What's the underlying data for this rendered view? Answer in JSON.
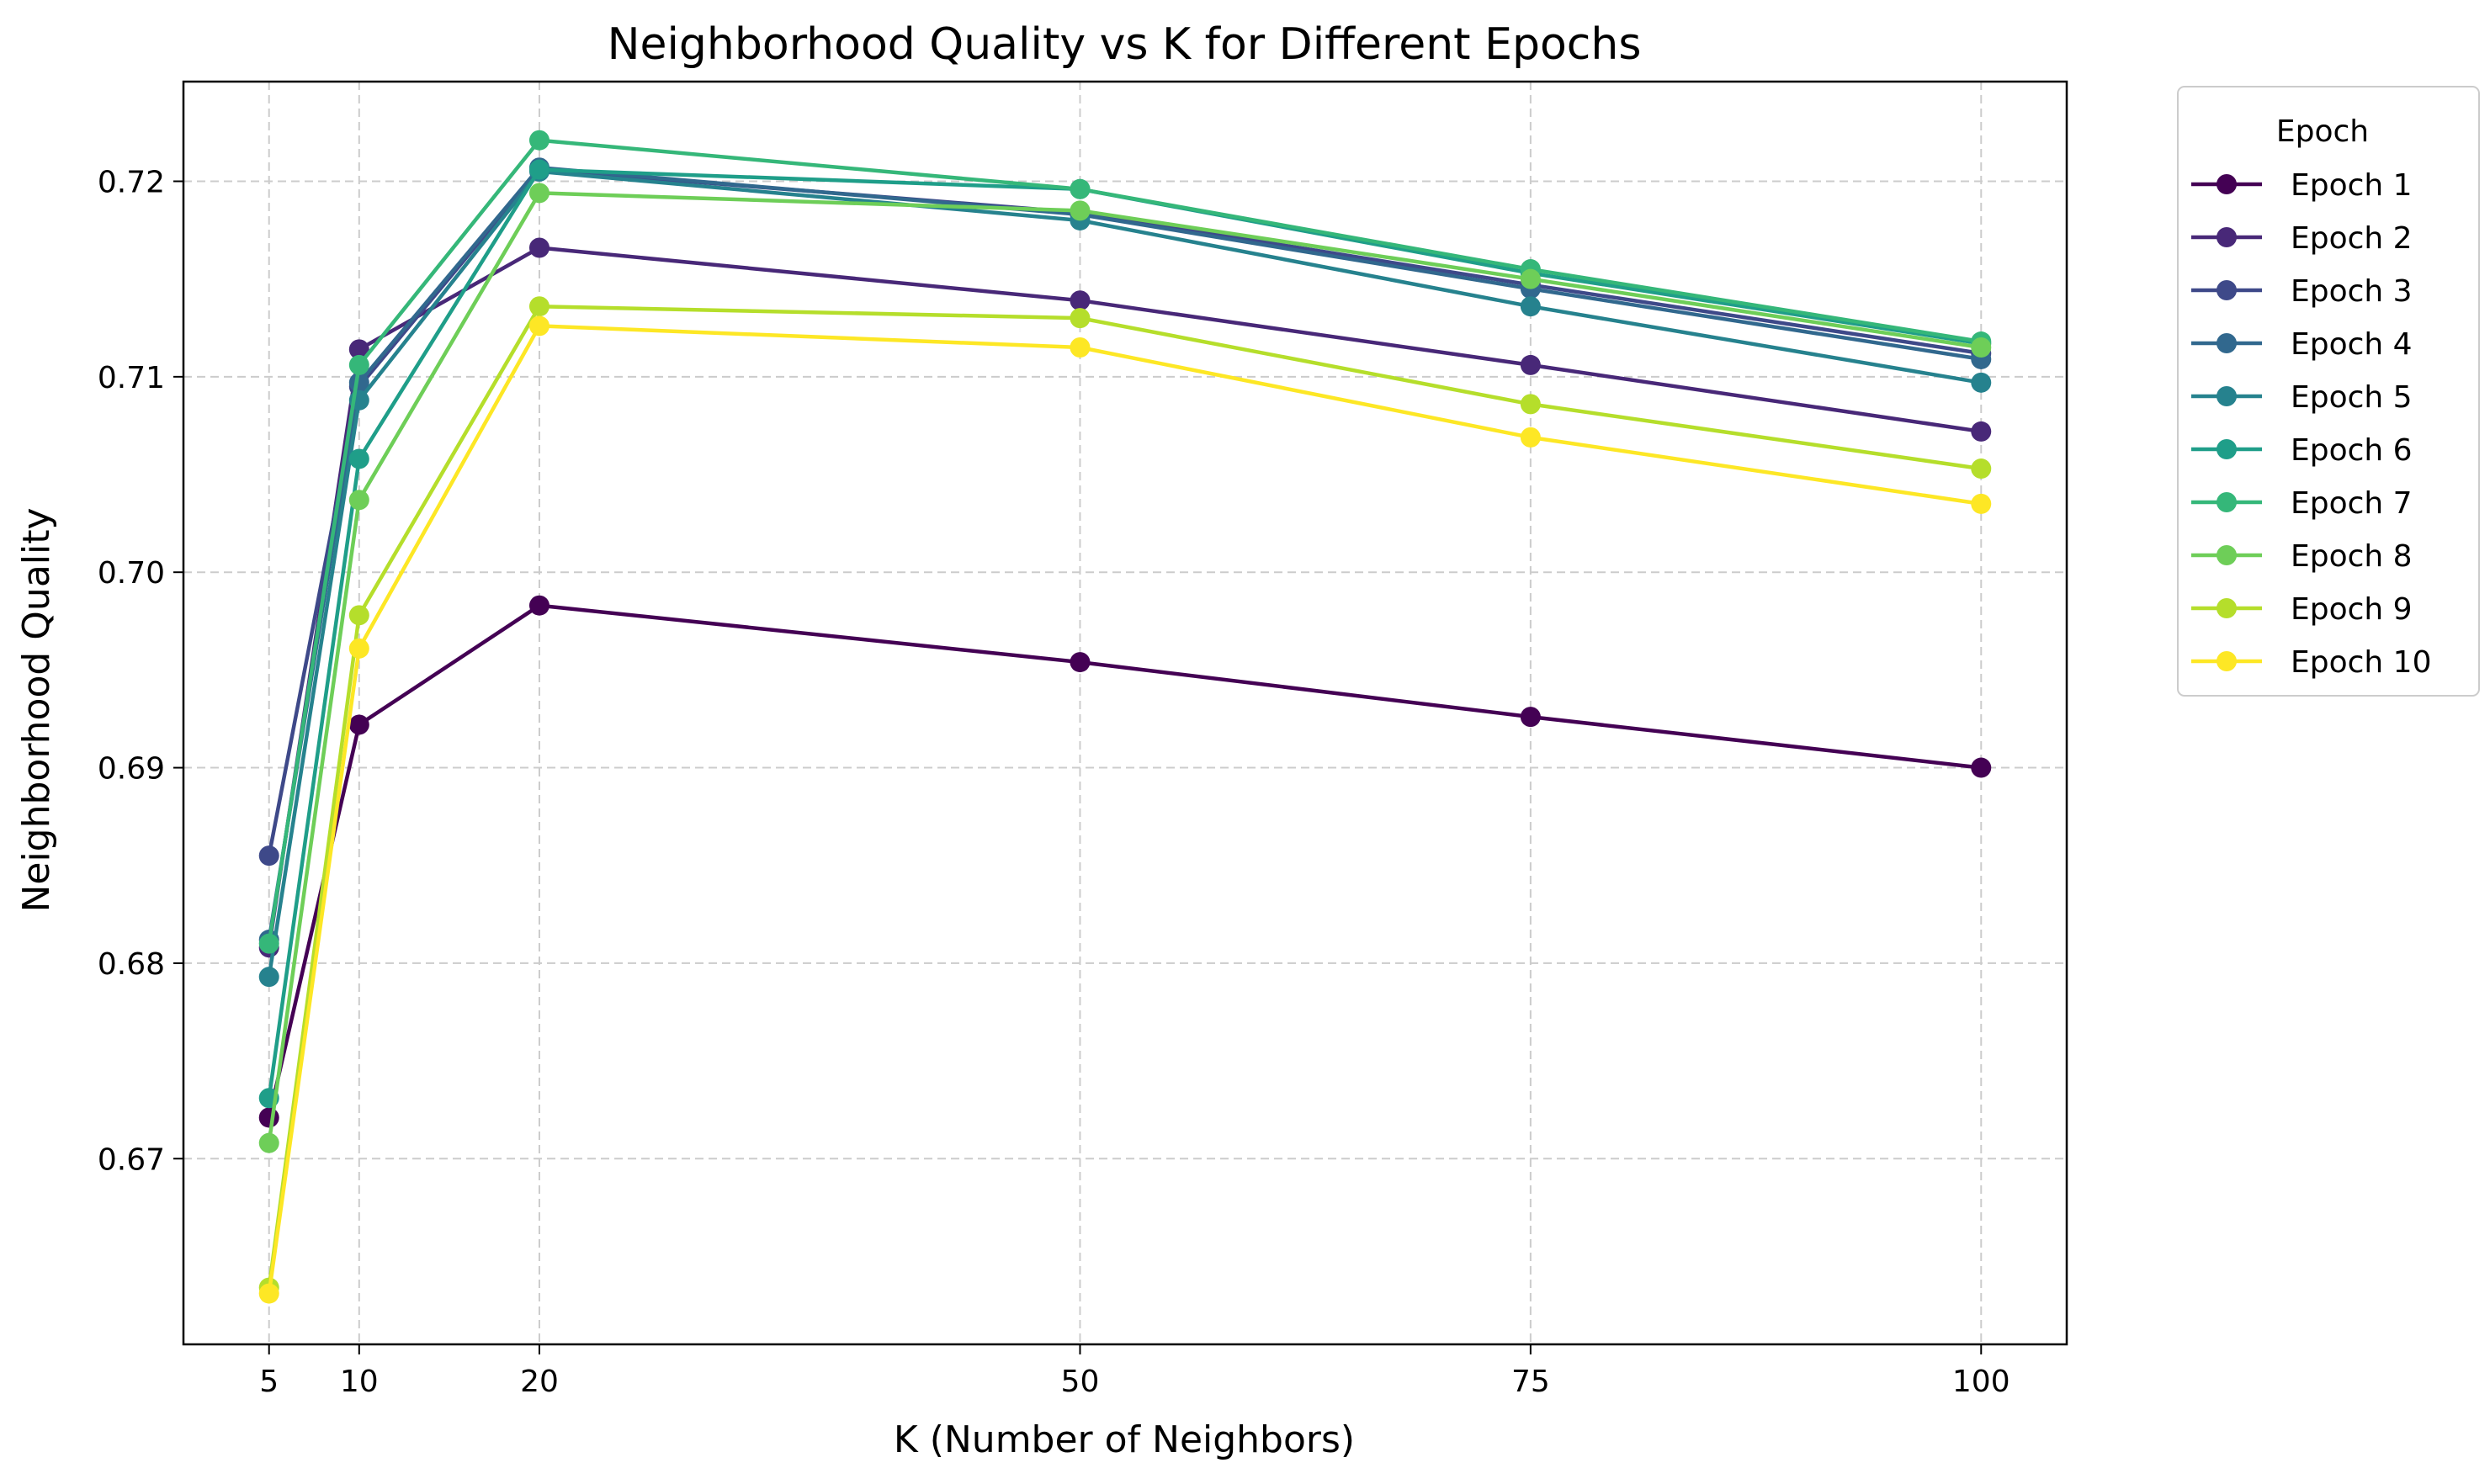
{
  "chart_data": {
    "type": "line",
    "title": "Neighborhood Quality vs K for Different Epochs",
    "xlabel": "K (Number of Neighbors)",
    "ylabel": "Neighborhood Quality",
    "x": [
      5,
      10,
      20,
      50,
      75,
      100
    ],
    "x_ticks": [
      5,
      10,
      20,
      50,
      75,
      100
    ],
    "y_ticks": [
      0.67,
      0.68,
      0.69,
      0.7,
      0.71,
      0.72
    ],
    "y_tick_labels": [
      "0.67",
      "0.68",
      "0.69",
      "0.70",
      "0.71",
      "0.72"
    ],
    "xlim": [
      0.25,
      104.75
    ],
    "ylim": [
      0.6605,
      0.7251
    ],
    "grid": true,
    "grid_style": "dashed",
    "marker": "circle",
    "legend": {
      "title": "Epoch",
      "placement": "outside-right-top"
    },
    "series": [
      {
        "name": "Epoch 1",
        "color": "#440154",
        "values": [
          0.6721,
          0.6922,
          0.6983,
          0.6954,
          0.6926,
          0.69
        ]
      },
      {
        "name": "Epoch 2",
        "color": "#482878",
        "values": [
          0.6808,
          0.7114,
          0.7166,
          0.7139,
          0.7106,
          0.7072
        ]
      },
      {
        "name": "Epoch 3",
        "color": "#3e4989",
        "values": [
          0.6855,
          0.7095,
          0.7206,
          0.7184,
          0.7147,
          0.7112
        ]
      },
      {
        "name": "Epoch 4",
        "color": "#31688e",
        "values": [
          0.6812,
          0.7097,
          0.7207,
          0.7183,
          0.7145,
          0.7109
        ]
      },
      {
        "name": "Epoch 5",
        "color": "#26828e",
        "values": [
          0.6793,
          0.7088,
          0.7205,
          0.718,
          0.7136,
          0.7097
        ]
      },
      {
        "name": "Epoch 6",
        "color": "#1f9e89",
        "values": [
          0.6731,
          0.7058,
          0.7206,
          0.7196,
          0.7153,
          0.7117
        ]
      },
      {
        "name": "Epoch 7",
        "color": "#35b779",
        "values": [
          0.681,
          0.7106,
          0.7221,
          0.7196,
          0.7155,
          0.7118
        ]
      },
      {
        "name": "Epoch 8",
        "color": "#6ece58",
        "values": [
          0.6708,
          0.7037,
          0.7194,
          0.7185,
          0.715,
          0.7115
        ]
      },
      {
        "name": "Epoch 9",
        "color": "#b5de2b",
        "values": [
          0.6634,
          0.6978,
          0.7136,
          0.713,
          0.7086,
          0.7053
        ]
      },
      {
        "name": "Epoch 10",
        "color": "#fde725",
        "values": [
          0.6631,
          0.6961,
          0.7126,
          0.7115,
          0.7069,
          0.7035
        ]
      }
    ]
  }
}
